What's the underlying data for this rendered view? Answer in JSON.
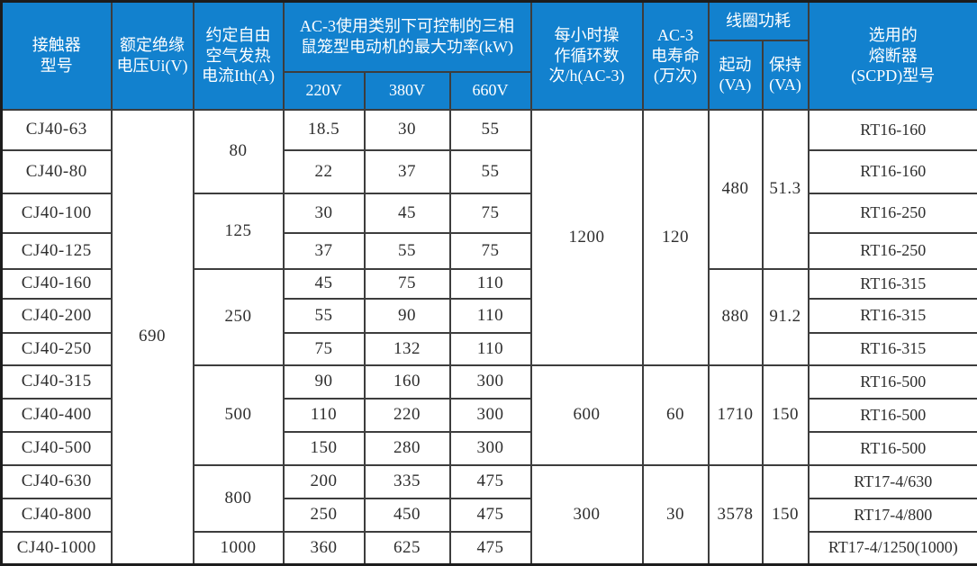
{
  "colors": {
    "header_bg": "#1281CE",
    "header_text": "#FFFFFF",
    "border": "#3d3d3d",
    "outer_border": "#1c1c1c",
    "body_text": "#2e2e2e",
    "body_bg": "#FFFFFF"
  },
  "header": {
    "model": "接触器\n型号",
    "insulation_voltage": "额定绝缘\n电压Ui(V)",
    "thermal_current": "约定自由\n空气发热\n电流Ith(A)",
    "ac3_power_group": "AC-3使用类别下可控制的三相\n鼠笼型电动机的最大功率(kW)",
    "voltage_220": "220V",
    "voltage_380": "380V",
    "voltage_660": "660V",
    "cycles": "每小时操\n作循环数\n次/h(AC-3)",
    "life": "AC-3\n电寿命\n(万次)",
    "coil_power_group": "线圈功耗",
    "coil_pickup": "起动\n(VA)",
    "coil_hold": "保持\n(VA)",
    "fuse": "选用的\n熔断器\n(SCPD)型号"
  },
  "body": {
    "insulation_voltage": "690",
    "rows": [
      {
        "model": "CJ40-63",
        "ith": {
          "value": "80",
          "rowspan": 2
        },
        "p220": "18.5",
        "p380": "30",
        "p660": "55",
        "cycles": {
          "value": "1200",
          "rowspan": 7
        },
        "life": {
          "value": "120",
          "rowspan": 7
        },
        "pickup": {
          "value": "480",
          "rowspan": 4
        },
        "hold": {
          "value": "51.3",
          "rowspan": 4
        },
        "fuse": "RT16-160"
      },
      {
        "model": "CJ40-80",
        "p220": "22",
        "p380": "37",
        "p660": "55",
        "fuse": "RT16-160"
      },
      {
        "model": "CJ40-100",
        "ith": {
          "value": "125",
          "rowspan": 2
        },
        "p220": "30",
        "p380": "45",
        "p660": "75",
        "fuse": "RT16-250"
      },
      {
        "model": "CJ40-125",
        "p220": "37",
        "p380": "55",
        "p660": "75",
        "fuse": "RT16-250"
      },
      {
        "model": "CJ40-160",
        "ith": {
          "value": "250",
          "rowspan": 3
        },
        "p220": "45",
        "p380": "75",
        "p660": "110",
        "pickup": {
          "value": "880",
          "rowspan": 3
        },
        "hold": {
          "value": "91.2",
          "rowspan": 3
        },
        "fuse": "RT16-315"
      },
      {
        "model": "CJ40-200",
        "p220": "55",
        "p380": "90",
        "p660": "110",
        "fuse": "RT16-315"
      },
      {
        "model": "CJ40-250",
        "p220": "75",
        "p380": "132",
        "p660": "110",
        "fuse": "RT16-315"
      },
      {
        "model": "CJ40-315",
        "ith": {
          "value": "500",
          "rowspan": 3
        },
        "p220": "90",
        "p380": "160",
        "p660": "300",
        "cycles": {
          "value": "600",
          "rowspan": 3
        },
        "life": {
          "value": "60",
          "rowspan": 3
        },
        "pickup": {
          "value": "1710",
          "rowspan": 3
        },
        "hold": {
          "value": "150",
          "rowspan": 3
        },
        "fuse": "RT16-500"
      },
      {
        "model": "CJ40-400",
        "p220": "110",
        "p380": "220",
        "p660": "300",
        "fuse": "RT16-500"
      },
      {
        "model": "CJ40-500",
        "p220": "150",
        "p380": "280",
        "p660": "300",
        "fuse": "RT16-500"
      },
      {
        "model": "CJ40-630",
        "ith": {
          "value": "800",
          "rowspan": 2
        },
        "p220": "200",
        "p380": "335",
        "p660": "475",
        "cycles": {
          "value": "300",
          "rowspan": 3
        },
        "life": {
          "value": "30",
          "rowspan": 3
        },
        "pickup": {
          "value": "3578",
          "rowspan": 3
        },
        "hold": {
          "value": "150",
          "rowspan": 3
        },
        "fuse": "RT17-4/630"
      },
      {
        "model": "CJ40-800",
        "p220": "250",
        "p380": "450",
        "p660": "475",
        "fuse": "RT17-4/800"
      },
      {
        "model": "CJ40-1000",
        "ith": {
          "value": "1000",
          "rowspan": 1
        },
        "p220": "360",
        "p380": "625",
        "p660": "475",
        "fuse": "RT17-4/1250(1000)"
      }
    ]
  }
}
